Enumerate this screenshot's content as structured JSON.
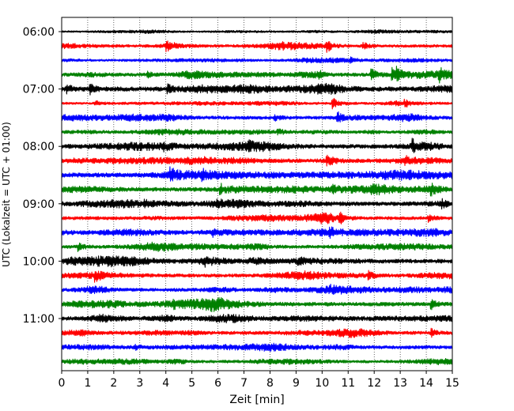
{
  "chart_data": {
    "type": "line",
    "title": "",
    "xlabel": "Zeit  [min]",
    "ylabel": "UTC (Lokalzeit = UTC + 01:00)",
    "xlim": [
      0,
      15
    ],
    "x_ticks": [
      "0",
      "1",
      "2",
      "3",
      "4",
      "5",
      "6",
      "7",
      "8",
      "9",
      "10",
      "11",
      "12",
      "13",
      "14",
      "15"
    ],
    "y_tick_labels": [
      "06:00",
      "07:00",
      "08:00",
      "09:00",
      "10:00",
      "11:00"
    ],
    "grid": "vertical-dotted",
    "trace_interval_minutes": 15,
    "colors": [
      "#000000",
      "#ff0000",
      "#0000ff",
      "#008000"
    ],
    "series": [
      {
        "start": "06:00",
        "color": "#000000",
        "amplitude": 0.15,
        "events": []
      },
      {
        "start": "06:15",
        "color": "#ff0000",
        "amplitude": 0.25,
        "events": [
          {
            "t": 4.05,
            "a": 0.6
          },
          {
            "t": 10.2,
            "a": 0.9
          },
          {
            "t": 11.6,
            "a": 0.5
          }
        ]
      },
      {
        "start": "06:30",
        "color": "#0000ff",
        "amplitude": 0.2,
        "events": [
          {
            "t": 11.1,
            "a": 0.35
          }
        ]
      },
      {
        "start": "06:45",
        "color": "#008000",
        "amplitude": 0.3,
        "events": [
          {
            "t": 3.3,
            "a": 0.4
          },
          {
            "t": 9.9,
            "a": 0.5
          },
          {
            "t": 11.9,
            "a": 0.9
          },
          {
            "t": 12.7,
            "a": 0.9
          },
          {
            "t": 12.9,
            "a": 0.8
          },
          {
            "t": 14.5,
            "a": 0.8
          }
        ]
      },
      {
        "start": "07:00",
        "color": "#000000",
        "amplitude": 0.4,
        "events": [
          {
            "t": 0.2,
            "a": 0.7
          },
          {
            "t": 1.1,
            "a": 0.7
          },
          {
            "t": 4.1,
            "a": 0.6
          }
        ]
      },
      {
        "start": "07:15",
        "color": "#ff0000",
        "amplitude": 0.2,
        "events": [
          {
            "t": 1.3,
            "a": 0.4
          },
          {
            "t": 10.4,
            "a": 0.9
          },
          {
            "t": 13.2,
            "a": 0.4
          }
        ]
      },
      {
        "start": "07:30",
        "color": "#0000ff",
        "amplitude": 0.3,
        "events": [
          {
            "t": 8.2,
            "a": 0.4
          },
          {
            "t": 10.6,
            "a": 0.9
          }
        ]
      },
      {
        "start": "07:45",
        "color": "#008000",
        "amplitude": 0.25,
        "events": [
          {
            "t": 8.3,
            "a": 0.4
          }
        ]
      },
      {
        "start": "08:00",
        "color": "#000000",
        "amplitude": 0.35,
        "events": [
          {
            "t": 3.9,
            "a": 0.5
          },
          {
            "t": 7.2,
            "a": 0.4
          },
          {
            "t": 13.5,
            "a": 0.9
          }
        ]
      },
      {
        "start": "08:15",
        "color": "#ff0000",
        "amplitude": 0.35,
        "events": [
          {
            "t": 10.2,
            "a": 0.6
          },
          {
            "t": 13.2,
            "a": 0.5
          }
        ]
      },
      {
        "start": "08:30",
        "color": "#0000ff",
        "amplitude": 0.4,
        "events": [
          {
            "t": 4.2,
            "a": 0.8
          },
          {
            "t": 5.4,
            "a": 0.6
          }
        ]
      },
      {
        "start": "08:45",
        "color": "#008000",
        "amplitude": 0.35,
        "events": [
          {
            "t": 6.1,
            "a": 0.9
          },
          {
            "t": 10.4,
            "a": 0.6
          },
          {
            "t": 14.2,
            "a": 0.6
          }
        ]
      },
      {
        "start": "09:00",
        "color": "#000000",
        "amplitude": 0.35,
        "events": [
          {
            "t": 3.2,
            "a": 0.4
          },
          {
            "t": 14.6,
            "a": 0.5
          }
        ]
      },
      {
        "start": "09:15",
        "color": "#ff0000",
        "amplitude": 0.3,
        "events": [
          {
            "t": 10.7,
            "a": 0.8
          },
          {
            "t": 14.1,
            "a": 0.5
          }
        ]
      },
      {
        "start": "09:30",
        "color": "#0000ff",
        "amplitude": 0.35,
        "events": [
          {
            "t": 5.8,
            "a": 0.6
          },
          {
            "t": 10.3,
            "a": 0.5
          }
        ]
      },
      {
        "start": "09:45",
        "color": "#008000",
        "amplitude": 0.3,
        "events": [
          {
            "t": 0.65,
            "a": 0.6
          }
        ]
      },
      {
        "start": "10:00",
        "color": "#000000",
        "amplitude": 0.35,
        "events": [
          {
            "t": 5.5,
            "a": 0.6
          },
          {
            "t": 9.1,
            "a": 0.5
          }
        ]
      },
      {
        "start": "10:15",
        "color": "#ff0000",
        "amplitude": 0.3,
        "events": [
          {
            "t": 1.3,
            "a": 0.7
          },
          {
            "t": 11.8,
            "a": 0.6
          }
        ]
      },
      {
        "start": "10:30",
        "color": "#0000ff",
        "amplitude": 0.3,
        "events": [
          {
            "t": 10.3,
            "a": 0.4
          }
        ]
      },
      {
        "start": "10:45",
        "color": "#008000",
        "amplitude": 0.35,
        "events": [
          {
            "t": 4.3,
            "a": 0.5
          },
          {
            "t": 14.2,
            "a": 0.7
          }
        ]
      },
      {
        "start": "11:00",
        "color": "#000000",
        "amplitude": 0.35,
        "events": [
          {
            "t": 1.5,
            "a": 0.5
          }
        ]
      },
      {
        "start": "11:15",
        "color": "#ff0000",
        "amplitude": 0.3,
        "events": [
          {
            "t": 14.2,
            "a": 0.6
          }
        ]
      },
      {
        "start": "11:30",
        "color": "#0000ff",
        "amplitude": 0.3,
        "events": [
          {
            "t": 2.8,
            "a": 0.4
          }
        ]
      },
      {
        "start": "11:45",
        "color": "#008000",
        "amplitude": 0.25,
        "events": []
      }
    ]
  }
}
